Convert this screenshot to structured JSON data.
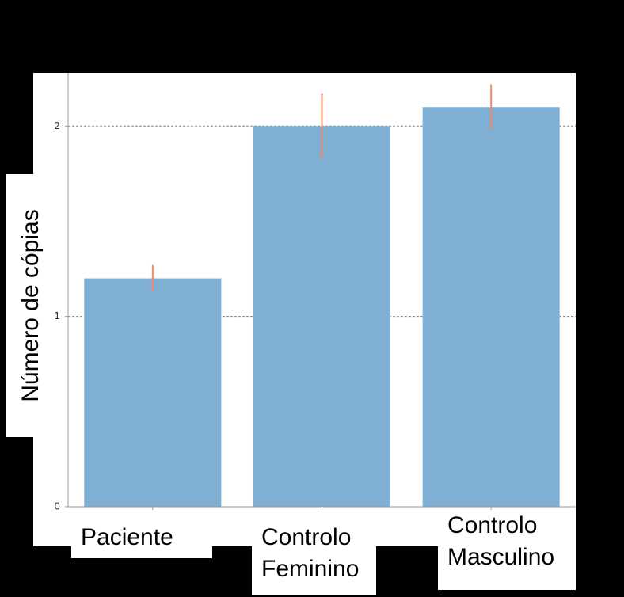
{
  "chart_data": {
    "type": "bar",
    "ylabel": "Número de cópias",
    "categories": [
      [
        "Paciente"
      ],
      [
        "Controlo",
        "Feminino"
      ],
      [
        "Controlo",
        "Masculino"
      ]
    ],
    "values": [
      1.2,
      2.0,
      2.1
    ],
    "errors": [
      0.07,
      0.17,
      0.12
    ],
    "color": "#7fb0d3",
    "error_color": "#f08a65",
    "ylim": [
      0,
      2.28
    ],
    "yticks": [
      0,
      1,
      2
    ],
    "grid": true
  }
}
